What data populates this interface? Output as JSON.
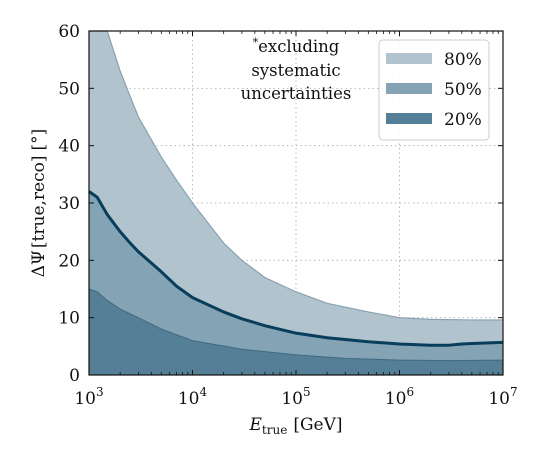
{
  "chart_data": {
    "type": "area",
    "x_scale": "log",
    "xlim": [
      1000,
      10000000
    ],
    "ylim": [
      0,
      60
    ],
    "grid": true,
    "legend_position": "top-right",
    "xlabel": {
      "main": "E",
      "sub": "true",
      "unit": "[GeV]"
    },
    "ylabel": {
      "main": "ΔΨ",
      "sub": "[true,reco]",
      "unit": "[°]"
    },
    "x_ticks": [
      {
        "value": 1000,
        "base": "10",
        "exp": "3"
      },
      {
        "value": 10000,
        "base": "10",
        "exp": "4"
      },
      {
        "value": 100000,
        "base": "10",
        "exp": "5"
      },
      {
        "value": 1000000,
        "base": "10",
        "exp": "6"
      },
      {
        "value": 10000000,
        "base": "10",
        "exp": "7"
      }
    ],
    "y_ticks": [
      0,
      10,
      20,
      30,
      40,
      50,
      60
    ],
    "annotation": {
      "marker": "*",
      "lines": [
        "excluding",
        "systematic",
        "uncertainties"
      ]
    },
    "colors": {
      "band80": "#b1c4cd",
      "band50": "#84a3b4",
      "band20": "#557f96",
      "median": "#083d5b",
      "line80": "#87a2b1"
    },
    "legend": [
      {
        "label": "80%",
        "color": "#b1c4cd"
      },
      {
        "label": "50%",
        "color": "#84a3b4"
      },
      {
        "label": "20%",
        "color": "#557f96"
      }
    ],
    "series": [
      {
        "name": "80%",
        "x": [
          1000,
          1500,
          2000,
          3000,
          5000,
          7000,
          10000,
          20000,
          30000,
          50000,
          100000,
          200000,
          500000,
          1000000,
          2000000,
          5000000,
          10000000
        ],
        "values": [
          60,
          60,
          53,
          45,
          38,
          34,
          30,
          23,
          20,
          17,
          14.5,
          12.5,
          11,
          10,
          9.7,
          9.6,
          9.6
        ]
      },
      {
        "name": "50%",
        "x": [
          1000,
          1200,
          1500,
          2000,
          2500,
          3000,
          5000,
          7000,
          10000,
          20000,
          30000,
          50000,
          100000,
          200000,
          500000,
          1000000,
          2000000,
          3000000,
          4000000,
          5000000,
          10000000
        ],
        "values": [
          32,
          31,
          28,
          25,
          23,
          21.5,
          18,
          15.5,
          13.5,
          11,
          9.8,
          8.6,
          7.3,
          6.5,
          5.8,
          5.4,
          5.2,
          5.2,
          5.4,
          5.5,
          5.7
        ]
      },
      {
        "name": "20%",
        "x": [
          1000,
          1200,
          1500,
          2000,
          3000,
          5000,
          10000,
          30000,
          100000,
          300000,
          1000000,
          3000000,
          10000000
        ],
        "values": [
          15,
          14.5,
          13,
          11.5,
          10,
          8,
          6,
          4.5,
          3.5,
          2.9,
          2.6,
          2.5,
          2.6
        ]
      }
    ]
  }
}
